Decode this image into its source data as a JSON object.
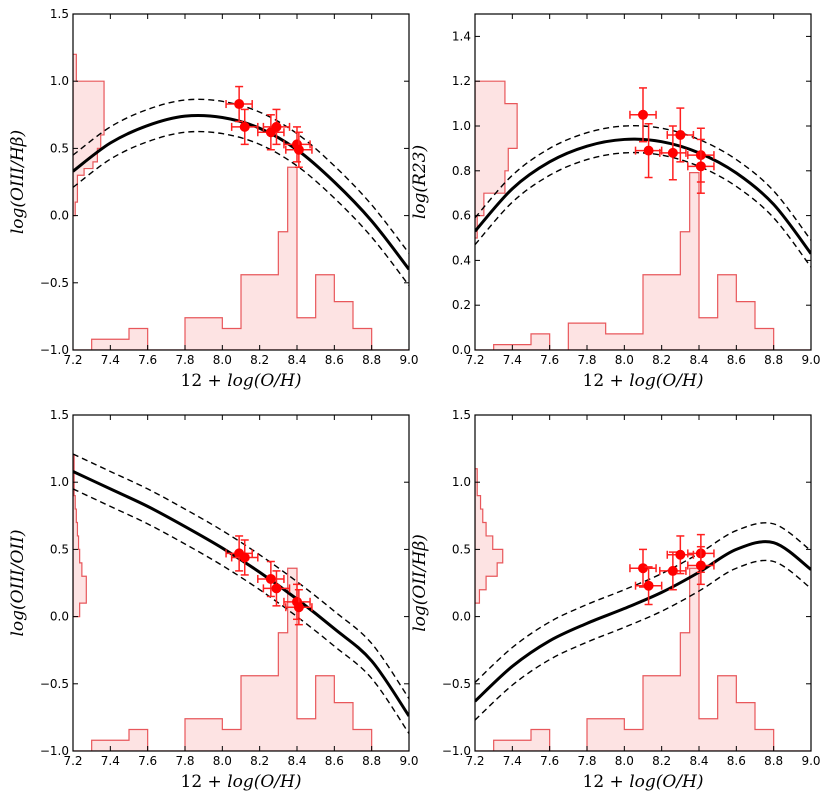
{
  "chart_data": [
    {
      "type": "line",
      "ylabel": "log(OIII/Hβ)",
      "xlabel_prefix": "12 + ",
      "xlabel_math": "log(O/H)",
      "xlim": [
        7.2,
        9.0
      ],
      "ylim": [
        -1.0,
        1.5
      ],
      "xticks": [
        "7.2",
        "7.4",
        "7.6",
        "7.8",
        "8.0",
        "8.2",
        "8.4",
        "8.6",
        "8.8",
        "9.0"
      ],
      "yticks": [
        "−1.0",
        "−0.5",
        "0.0",
        "0.5",
        "1.0",
        "1.5"
      ],
      "ytick_values": [
        -1.0,
        -0.5,
        0.0,
        0.5,
        1.0,
        1.5
      ],
      "fit": {
        "x": [
          7.2,
          7.4,
          7.6,
          7.8,
          8.0,
          8.2,
          8.4,
          8.6,
          8.8,
          9.0
        ],
        "y": [
          0.33,
          0.54,
          0.67,
          0.74,
          0.73,
          0.65,
          0.49,
          0.25,
          -0.04,
          -0.4
        ]
      },
      "fit_offset": 0.12,
      "points": [
        {
          "x": 8.09,
          "y": 0.83,
          "xerr": 0.07,
          "yerr": 0.13
        },
        {
          "x": 8.12,
          "y": 0.66,
          "xerr": 0.07,
          "yerr": 0.13
        },
        {
          "x": 8.26,
          "y": 0.62,
          "xerr": 0.07,
          "yerr": 0.13
        },
        {
          "x": 8.29,
          "y": 0.66,
          "xerr": 0.07,
          "yerr": 0.13
        },
        {
          "x": 8.4,
          "y": 0.53,
          "xerr": 0.07,
          "yerr": 0.13
        },
        {
          "x": 8.41,
          "y": 0.49,
          "xerr": 0.07,
          "yerr": 0.13
        }
      ],
      "hist_x": {
        "edges": [
          7.2,
          7.3,
          7.4,
          7.5,
          7.6,
          7.7,
          7.8,
          7.9,
          8.0,
          8.1,
          8.2,
          8.3,
          8.35,
          8.4,
          8.5,
          8.6,
          8.7,
          8.8,
          9.0
        ],
        "values": [
          0,
          0.02,
          0.02,
          0.04,
          0,
          0,
          0.06,
          0.06,
          0.04,
          0.14,
          0.14,
          0.22,
          0.34,
          0.06,
          0.14,
          0.09,
          0.04,
          0
        ]
      },
      "hist_y": {
        "edges": [
          0.0,
          0.1,
          0.3,
          0.35,
          0.4,
          0.5,
          0.6,
          0.8,
          1.0,
          1.2
        ],
        "values": [
          0.02,
          0.04,
          0.1,
          0.18,
          0.22,
          0.25,
          0.28,
          0.28,
          0.03
        ]
      }
    },
    {
      "type": "line",
      "ylabel": "log(R23)",
      "xlabel_prefix": "12 + ",
      "xlabel_math": "log(O/H)",
      "xlim": [
        7.2,
        9.0
      ],
      "ylim": [
        0.0,
        1.5
      ],
      "xticks": [
        "7.2",
        "7.4",
        "7.6",
        "7.8",
        "8.0",
        "8.2",
        "8.4",
        "8.6",
        "8.8",
        "9.0"
      ],
      "yticks": [
        "0.0",
        "0.2",
        "0.4",
        "0.6",
        "0.8",
        "1.0",
        "1.2",
        "1.4"
      ],
      "ytick_values": [
        0.0,
        0.2,
        0.4,
        0.6,
        0.8,
        1.0,
        1.2,
        1.4
      ],
      "fit": {
        "x": [
          7.2,
          7.4,
          7.6,
          7.8,
          8.0,
          8.2,
          8.4,
          8.6,
          8.8,
          9.0
        ],
        "y": [
          0.53,
          0.72,
          0.84,
          0.91,
          0.94,
          0.93,
          0.88,
          0.79,
          0.65,
          0.43
        ]
      },
      "fit_offset": 0.06,
      "points": [
        {
          "x": 8.1,
          "y": 1.05,
          "xerr": 0.07,
          "yerr": 0.12
        },
        {
          "x": 8.13,
          "y": 0.89,
          "xerr": 0.07,
          "yerr": 0.12
        },
        {
          "x": 8.26,
          "y": 0.88,
          "xerr": 0.07,
          "yerr": 0.12
        },
        {
          "x": 8.3,
          "y": 0.96,
          "xerr": 0.07,
          "yerr": 0.12
        },
        {
          "x": 8.41,
          "y": 0.87,
          "xerr": 0.07,
          "yerr": 0.12
        },
        {
          "x": 8.41,
          "y": 0.82,
          "xerr": 0.07,
          "yerr": 0.12
        }
      ],
      "hist_x": {
        "edges": [
          7.2,
          7.3,
          7.4,
          7.5,
          7.6,
          7.7,
          7.8,
          7.9,
          8.0,
          8.1,
          8.2,
          8.3,
          8.35,
          8.4,
          8.5,
          8.6,
          8.7,
          8.8,
          9.0
        ],
        "values": [
          0,
          0.01,
          0.01,
          0.03,
          0,
          0.05,
          0.05,
          0.03,
          0.03,
          0.14,
          0.14,
          0.22,
          0.33,
          0.06,
          0.14,
          0.09,
          0.04,
          0
        ]
      },
      "hist_y": {
        "edges": [
          0.5,
          0.6,
          0.7,
          0.8,
          0.9,
          1.1,
          1.2
        ],
        "values": [
          0.02,
          0.08,
          0.27,
          0.3,
          0.38,
          0.27
        ]
      }
    },
    {
      "type": "line",
      "ylabel": "log(OIII/OII)",
      "xlabel_prefix": "12 + ",
      "xlabel_math": "log(O/H)",
      "xlim": [
        7.2,
        9.0
      ],
      "ylim": [
        -1.0,
        1.5
      ],
      "xticks": [
        "7.2",
        "7.4",
        "7.6",
        "7.8",
        "8.0",
        "8.2",
        "8.4",
        "8.6",
        "8.8",
        "9.0"
      ],
      "yticks": [
        "−1.0",
        "−0.5",
        "0.0",
        "0.5",
        "1.0",
        "1.5"
      ],
      "ytick_values": [
        -1.0,
        -0.5,
        0.0,
        0.5,
        1.0,
        1.5
      ],
      "fit": {
        "x": [
          7.2,
          7.4,
          7.6,
          7.8,
          8.0,
          8.2,
          8.4,
          8.6,
          8.8,
          9.0
        ],
        "y": [
          1.08,
          0.95,
          0.82,
          0.67,
          0.51,
          0.33,
          0.13,
          -0.09,
          -0.33,
          -0.74
        ]
      },
      "fit_offset": 0.13,
      "points": [
        {
          "x": 8.09,
          "y": 0.47,
          "xerr": 0.07,
          "yerr": 0.13
        },
        {
          "x": 8.12,
          "y": 0.44,
          "xerr": 0.07,
          "yerr": 0.13
        },
        {
          "x": 8.26,
          "y": 0.28,
          "xerr": 0.07,
          "yerr": 0.13
        },
        {
          "x": 8.29,
          "y": 0.21,
          "xerr": 0.07,
          "yerr": 0.13
        },
        {
          "x": 8.4,
          "y": 0.11,
          "xerr": 0.07,
          "yerr": 0.13
        },
        {
          "x": 8.41,
          "y": 0.07,
          "xerr": 0.07,
          "yerr": 0.13
        }
      ],
      "hist_x": {
        "edges": [
          7.2,
          7.3,
          7.4,
          7.5,
          7.6,
          7.7,
          7.8,
          7.9,
          8.0,
          8.1,
          8.2,
          8.3,
          8.35,
          8.4,
          8.5,
          8.6,
          8.7,
          8.8,
          9.0
        ],
        "values": [
          0,
          0.02,
          0.02,
          0.04,
          0,
          0,
          0.06,
          0.06,
          0.04,
          0.14,
          0.14,
          0.22,
          0.34,
          0.06,
          0.14,
          0.09,
          0.04,
          0
        ]
      },
      "hist_y": {
        "edges": [
          0.0,
          0.1,
          0.2,
          0.3,
          0.4,
          0.5,
          0.6,
          0.7,
          0.8,
          0.9,
          1.0,
          1.2
        ],
        "values": [
          0.06,
          0.12,
          0.12,
          0.08,
          0.06,
          0.05,
          0.04,
          0.03,
          0.02,
          0.01,
          0.01
        ]
      }
    },
    {
      "type": "line",
      "ylabel": "log(OII/Hβ)",
      "xlabel_prefix": "12 + ",
      "xlabel_math": "log(O/H)",
      "xlim": [
        7.2,
        9.0
      ],
      "ylim": [
        -1.0,
        1.5
      ],
      "xticks": [
        "7.2",
        "7.4",
        "7.6",
        "7.8",
        "8.0",
        "8.2",
        "8.4",
        "8.6",
        "8.8",
        "9.0"
      ],
      "yticks": [
        "−1.0",
        "−0.5",
        "0.0",
        "0.5",
        "1.0",
        "1.5"
      ],
      "ytick_values": [
        -1.0,
        -0.5,
        0.0,
        0.5,
        1.0,
        1.5
      ],
      "fit": {
        "x": [
          7.2,
          7.4,
          7.6,
          7.8,
          8.0,
          8.2,
          8.4,
          8.6,
          8.8,
          9.0
        ],
        "y": [
          -0.63,
          -0.37,
          -0.18,
          -0.05,
          0.06,
          0.18,
          0.33,
          0.5,
          0.55,
          0.35
        ]
      },
      "fit_offset": 0.14,
      "points": [
        {
          "x": 8.1,
          "y": 0.36,
          "xerr": 0.07,
          "yerr": 0.14
        },
        {
          "x": 8.13,
          "y": 0.23,
          "xerr": 0.07,
          "yerr": 0.14
        },
        {
          "x": 8.26,
          "y": 0.34,
          "xerr": 0.07,
          "yerr": 0.14
        },
        {
          "x": 8.3,
          "y": 0.46,
          "xerr": 0.07,
          "yerr": 0.14
        },
        {
          "x": 8.41,
          "y": 0.47,
          "xerr": 0.07,
          "yerr": 0.14
        },
        {
          "x": 8.41,
          "y": 0.38,
          "xerr": 0.07,
          "yerr": 0.14
        }
      ],
      "hist_x": {
        "edges": [
          7.2,
          7.3,
          7.4,
          7.5,
          7.6,
          7.7,
          7.8,
          7.9,
          8.0,
          8.1,
          8.2,
          8.3,
          8.35,
          8.4,
          8.5,
          8.6,
          8.7,
          8.8,
          9.0
        ],
        "values": [
          0,
          0.02,
          0.02,
          0.04,
          0,
          0,
          0.06,
          0.06,
          0.04,
          0.14,
          0.14,
          0.22,
          0.34,
          0.06,
          0.14,
          0.09,
          0.04,
          0
        ]
      },
      "hist_y": {
        "edges": [
          0.1,
          0.2,
          0.3,
          0.4,
          0.5,
          0.6,
          0.7,
          0.8,
          0.9,
          1.1
        ],
        "values": [
          0.04,
          0.1,
          0.2,
          0.25,
          0.16,
          0.1,
          0.07,
          0.05,
          0.02
        ]
      }
    }
  ]
}
